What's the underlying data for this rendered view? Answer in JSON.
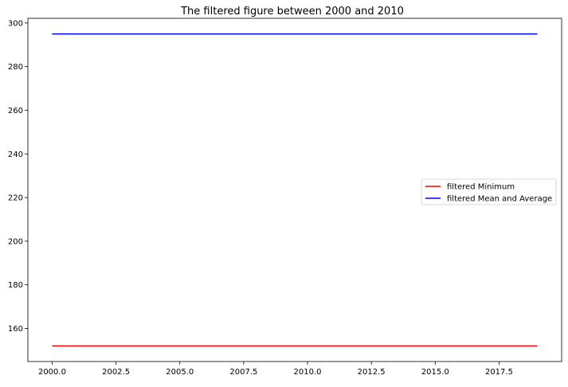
{
  "chart_data": {
    "type": "line",
    "title": "The filtered figure between 2000 and 2010",
    "xlabel": "",
    "ylabel": "",
    "xlim": [
      1999.05,
      2019.95
    ],
    "ylim": [
      144.85,
      302.15
    ],
    "x_ticks": [
      2000.0,
      2002.5,
      2005.0,
      2007.5,
      2010.0,
      2012.5,
      2015.0,
      2017.5
    ],
    "x_tick_labels": [
      "2000.0",
      "2002.5",
      "2005.0",
      "2007.5",
      "2010.0",
      "2012.5",
      "2015.0",
      "2017.5"
    ],
    "y_ticks": [
      160,
      180,
      200,
      220,
      240,
      260,
      280,
      300
    ],
    "y_tick_labels": [
      "160",
      "180",
      "200",
      "220",
      "240",
      "260",
      "280",
      "300"
    ],
    "grid": false,
    "legend_position": "center-right",
    "series": [
      {
        "name": "filtered Minimum",
        "color": "#ff0000",
        "x": [
          2000,
          2019
        ],
        "y": [
          152,
          152
        ]
      },
      {
        "name": "filtered Mean and Average",
        "color": "#0000ff",
        "x": [
          2000,
          2019
        ],
        "y": [
          295,
          295
        ]
      }
    ]
  }
}
